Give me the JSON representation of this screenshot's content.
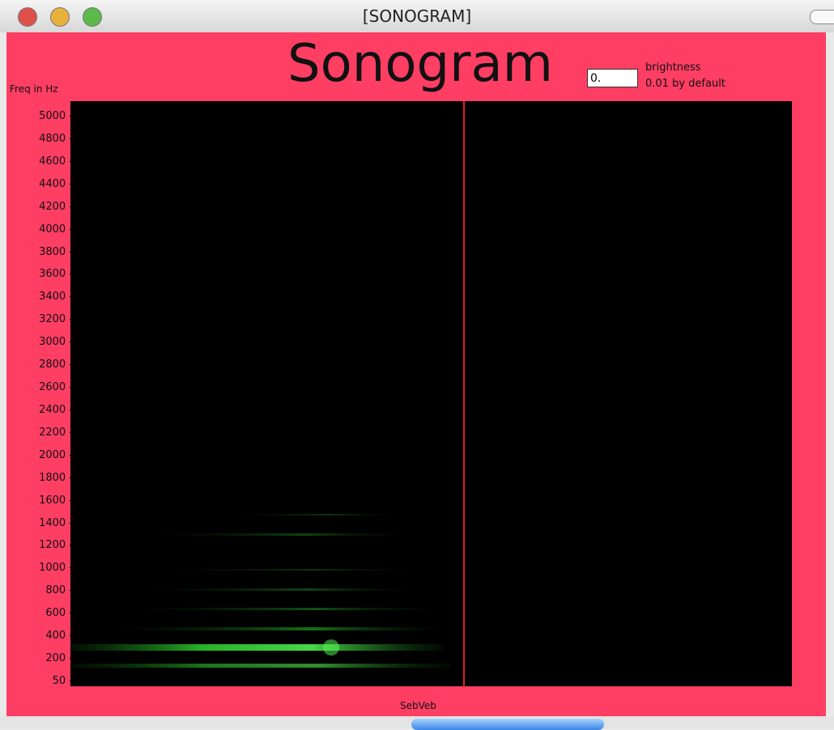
{
  "window": {
    "title": "[SONOGRAM]"
  },
  "patch": {
    "heading": "Sonogram",
    "brightness_box": "0.",
    "brightness_label": "brightness",
    "brightness_default": "0.01 by default",
    "axis_label": "Freq in Hz",
    "freq_labels": [
      "5000 -",
      "4800 -",
      "4600 -",
      "4400 -",
      "4200 -",
      "4000 -",
      "3800 -",
      "3600 -",
      "3400 -",
      "3200 -",
      "3000 -",
      "2800 -",
      "2600 -",
      "2400 -",
      "2200 -",
      "2000 -",
      "1800 -",
      "1600 -",
      "1400 -",
      "1200 -",
      "1000 -",
      "800 -",
      "600 -",
      "400 -",
      "200 -",
      "50 -"
    ],
    "footer": "SebVeb"
  }
}
